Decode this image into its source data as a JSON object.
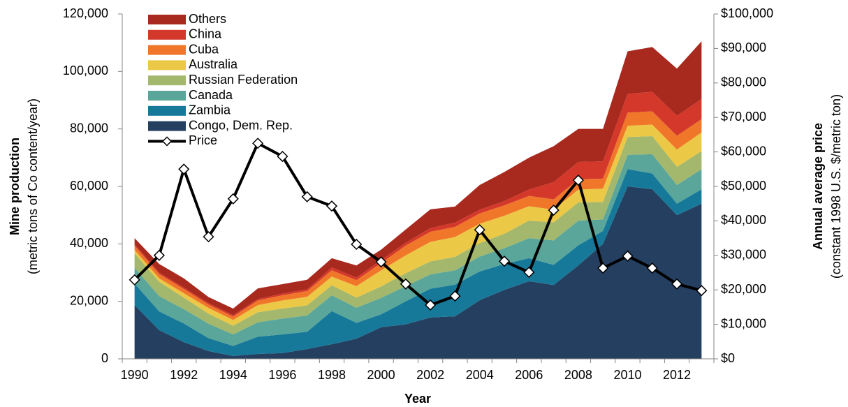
{
  "chart_data": {
    "type": "area",
    "xlabel": "Year",
    "ylabel": [
      "Mine production",
      "(metric tons of Co content/year)"
    ],
    "y2label": [
      "Annual average price",
      "(constant 1998 U.S. $/metric ton)"
    ],
    "legend": "upper left",
    "categories": [
      "1990",
      null,
      "1992",
      null,
      "1994",
      null,
      "1996",
      null,
      "1998",
      null,
      "2000",
      null,
      "2002",
      null,
      "2004",
      null,
      "2006",
      null,
      "2008",
      null,
      "2010",
      null,
      "2012",
      null
    ],
    "ylim": [
      0,
      120000
    ],
    "yticks": [
      {
        "value": 0,
        "label": "0"
      },
      {
        "value": 20000,
        "label": "20,000"
      },
      {
        "value": 40000,
        "label": "40,000"
      },
      {
        "value": 60000,
        "label": "60,000"
      },
      {
        "value": 80000,
        "label": "80,000"
      },
      {
        "value": 100000,
        "label": "100,000"
      },
      {
        "value": 120000,
        "label": "120,000"
      }
    ],
    "y2lim": [
      0,
      100000
    ],
    "y2ticks": [
      {
        "value": 0,
        "label": "$0"
      },
      {
        "value": 10000,
        "label": "$10,000"
      },
      {
        "value": 20000,
        "label": "$20,000"
      },
      {
        "value": 30000,
        "label": "$30,000"
      },
      {
        "value": 40000,
        "label": "$40,000"
      },
      {
        "value": 50000,
        "label": "$50,000"
      },
      {
        "value": 60000,
        "label": "$60,000"
      },
      {
        "value": 70000,
        "label": "$70,000"
      },
      {
        "value": 80000,
        "label": "$80,000"
      },
      {
        "value": 90000,
        "label": "$90,000"
      },
      {
        "value": 100000,
        "label": "$100,000"
      }
    ],
    "series": [
      {
        "name": "Congo, Dem. Rep.",
        "color": "#243f60",
        "values": [
          18700,
          10000,
          5800,
          2700,
          1000,
          1700,
          2000,
          3400,
          5100,
          7000,
          11000,
          12000,
          14400,
          14800,
          20400,
          24000,
          27000,
          25700,
          32500,
          40000,
          60000,
          59000,
          50000,
          54000
        ]
      },
      {
        "name": "Zambia",
        "color": "#17799a",
        "values": [
          7500,
          6500,
          6500,
          4500,
          3500,
          6000,
          6500,
          6000,
          11500,
          5500,
          4500,
          8000,
          10000,
          11000,
          10000,
          9000,
          8000,
          7000,
          7000,
          4500,
          6000,
          5500,
          4000,
          5000
        ]
      },
      {
        "name": "Canada",
        "color": "#5aa69a",
        "values": [
          5500,
          5300,
          5000,
          5000,
          4000,
          5000,
          5500,
          5700,
          5500,
          5300,
          5700,
          5300,
          5000,
          5000,
          5200,
          5500,
          7000,
          8500,
          8600,
          4000,
          5000,
          6700,
          6500,
          7000
        ]
      },
      {
        "name": "Russian Federation",
        "color": "#a3b86c",
        "values": [
          5000,
          5000,
          4000,
          3500,
          3000,
          3500,
          3500,
          3500,
          3500,
          3500,
          4000,
          4500,
          4500,
          4700,
          4700,
          5000,
          6100,
          6300,
          6300,
          6100,
          6200,
          6300,
          6300,
          6300
        ]
      },
      {
        "name": "Australia",
        "color": "#ecc847",
        "values": [
          1200,
          1200,
          1500,
          2000,
          2000,
          2500,
          2800,
          3000,
          3000,
          4000,
          5600,
          6200,
          6800,
          6900,
          6700,
          6300,
          5000,
          4400,
          4500,
          4600,
          3900,
          4000,
          6000,
          6500
        ]
      },
      {
        "name": "Cuba",
        "color": "#f0772a",
        "values": [
          1500,
          1500,
          1500,
          1200,
          1200,
          1600,
          1800,
          2000,
          2200,
          2100,
          2500,
          3400,
          3500,
          3500,
          3600,
          3600,
          3600,
          3600,
          3600,
          3500,
          4600,
          4600,
          4800,
          4600
        ]
      },
      {
        "name": "China",
        "color": "#d4382a",
        "values": [
          500,
          500,
          500,
          500,
          500,
          500,
          600,
          600,
          1000,
          900,
          1000,
          1000,
          1300,
          1500,
          1300,
          1500,
          2200,
          6000,
          6000,
          6000,
          6500,
          6800,
          7000,
          7000
        ]
      },
      {
        "name": "Others",
        "color": "#a8291e",
        "values": [
          2100,
          3000,
          3200,
          2100,
          2300,
          3700,
          3300,
          3300,
          3200,
          4200,
          3700,
          4600,
          6500,
          5600,
          8600,
          10100,
          11100,
          12500,
          11500,
          11300,
          14800,
          15600,
          16400,
          20100
        ]
      },
      {
        "name": "Price",
        "color": "#000000",
        "type": "line",
        "axis": "y2",
        "values": [
          22900,
          30000,
          55000,
          35400,
          46400,
          62500,
          58700,
          47000,
          44300,
          33200,
          28100,
          21700,
          15600,
          18200,
          37400,
          28300,
          25100,
          43100,
          51800,
          26300,
          29800,
          26300,
          21700,
          19800
        ]
      }
    ]
  }
}
